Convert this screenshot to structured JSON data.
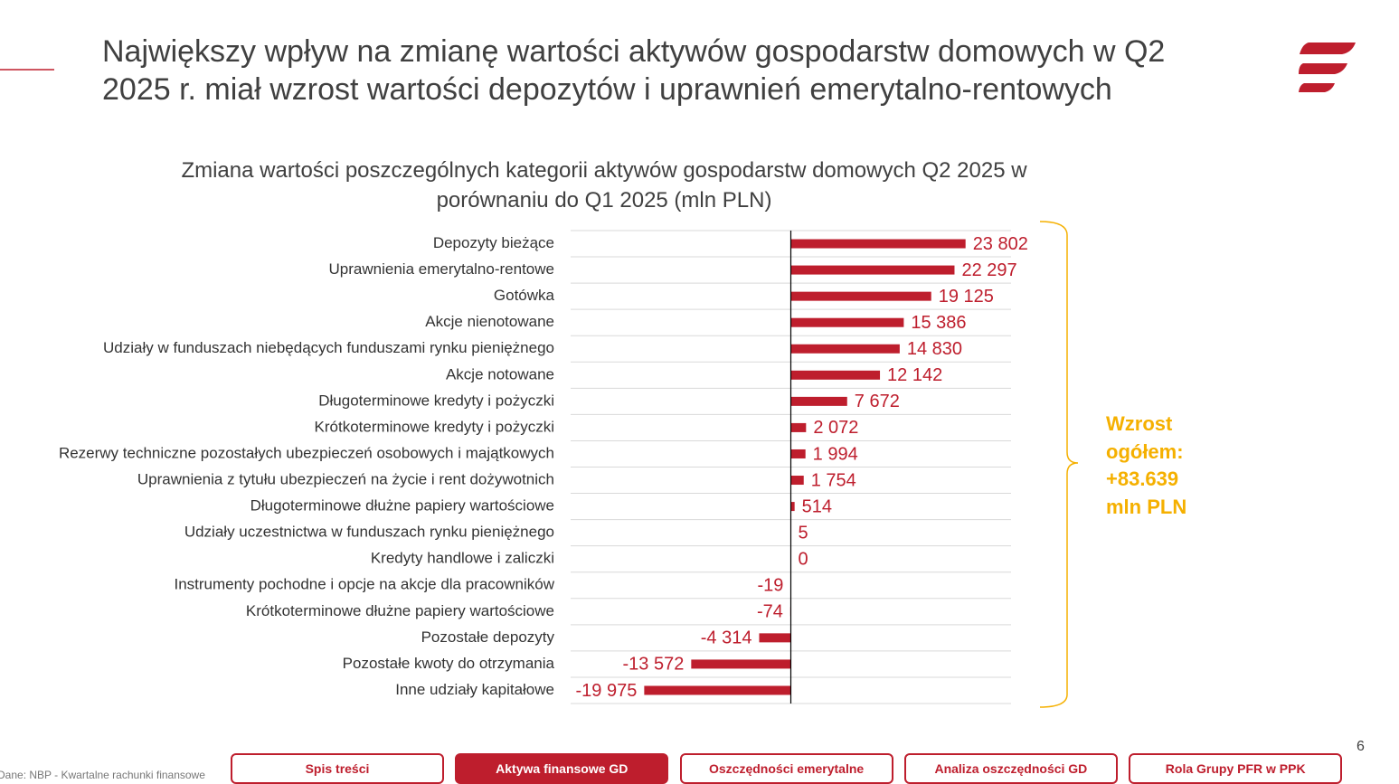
{
  "header": {
    "title": "Największy wpływ na zmianę wartości aktywów gospodarstw domowych w Q2 2025 r. miał wzrost wartości depozytów i uprawnień emerytalno-rentowych"
  },
  "chart_data": {
    "type": "bar",
    "orientation": "horizontal",
    "title": "Zmiana wartości poszczególnych kategorii aktywów gospodarstw domowych Q2 2025 w porównaniu do Q1 2025 (mln PLN)",
    "categories": [
      "Depozyty bieżące",
      "Uprawnienia emerytalno-rentowe",
      "Gotówka",
      "Akcje nienotowane",
      "Udziały w funduszach niebędących funduszami rynku pieniężnego",
      "Akcje notowane",
      "Długoterminowe kredyty i pożyczki",
      "Krótkoterminowe kredyty i pożyczki",
      "Rezerwy techniczne pozostałych ubezpieczeń osobowych i majątkowych",
      "Uprawnienia z tytułu ubezpieczeń na życie i rent dożywotnich",
      "Długoterminowe dłużne papiery wartościowe",
      "Udziały uczestnictwa w funduszach rynku pieniężnego",
      "Kredyty handlowe i zaliczki",
      "Instrumenty pochodne i opcje na akcje dla pracowników",
      "Krótkoterminowe dłużne papiery wartościowe",
      "Pozostałe depozyty",
      "Pozostałe kwoty do otrzymania",
      "Inne udziały kapitałowe"
    ],
    "values": [
      23802,
      22297,
      19125,
      15386,
      14830,
      12142,
      7672,
      2072,
      1994,
      1754,
      514,
      5,
      0,
      -19,
      -74,
      -4314,
      -13572,
      -19975
    ],
    "value_labels": [
      "23 802",
      "22 297",
      "19 125",
      "15 386",
      "14 830",
      "12 142",
      "7 672",
      "2 072",
      "1 994",
      "1 754",
      "514",
      "5",
      "0",
      "-19",
      "-74",
      "-4 314",
      "-13 572",
      "-19 975"
    ],
    "color": "#be1e2d",
    "xlim": [
      -30000,
      30000
    ],
    "annotation": "Wzrost ogółem: +83.639 mln PLN"
  },
  "source": "Dane: NBP - Kwartalne rachunki finansowe",
  "navigation": [
    "Spis treści",
    "Aktywa finansowe GD",
    "Oszczędności emerytalne",
    "Analiza oszczędności GD",
    "Rola Grupy PFR w PPK"
  ],
  "active_navigation": 1,
  "page_number": "6"
}
